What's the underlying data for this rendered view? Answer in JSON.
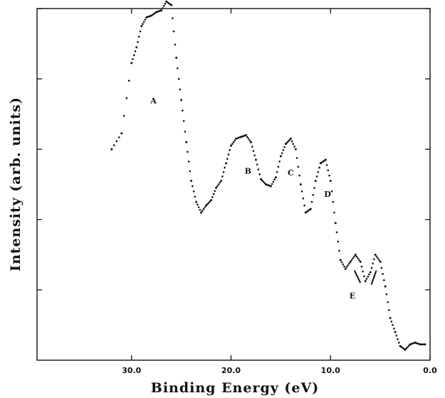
{
  "chart_data": {
    "type": "scatter",
    "title": "",
    "xlabel": "Binding Energy (eV)",
    "ylabel": "Intensity (arb. units)",
    "xlim": [
      39.5,
      0.0
    ],
    "ylim": [
      0,
      100
    ],
    "x_reversed": true,
    "x_ticks": [
      30.0,
      20.0,
      10.0,
      0.0
    ],
    "x_tick_labels": [
      "30.0",
      "20.0",
      "10.0",
      "0.0"
    ],
    "y_ticks": [
      20,
      40,
      60,
      80,
      100
    ],
    "y_tick_labels_shown": false,
    "grid": false,
    "legend": "none",
    "series": [
      {
        "values_x": [
          32.0,
          31.0,
          30.0,
          29.5,
          29.0,
          28.5,
          28.0,
          27.5,
          27.0,
          26.5,
          26.0,
          25.5,
          25.0,
          24.5,
          24.0,
          23.5,
          23.0,
          22.5,
          22.0,
          21.5,
          21.0,
          20.5,
          20.0,
          19.5,
          19.0,
          18.5,
          18.0,
          17.5,
          17.0,
          16.5,
          16.0,
          15.5,
          15.0,
          14.5,
          14.0,
          13.5,
          13.0,
          12.5,
          12.0,
          11.5,
          11.0,
          10.5,
          10.0,
          9.5,
          9.0,
          8.5,
          8.0,
          7.5,
          7.0,
          6.5,
          6.0,
          5.5,
          5.0,
          4.5,
          4.0,
          3.5,
          3.0,
          2.5,
          2.0,
          1.5,
          1.0,
          0.5
        ],
        "values_y": [
          60.0,
          64.5,
          84.5,
          89.0,
          95.0,
          97.5,
          98.0,
          99.0,
          99.5,
          102.0,
          101.0,
          86.0,
          74.0,
          62.0,
          51.0,
          45.0,
          42.0,
          44.0,
          45.5,
          49.0,
          51.0,
          56.0,
          61.0,
          63.0,
          63.5,
          64.0,
          62.0,
          57.0,
          51.5,
          50.0,
          49.5,
          52.0,
          58.0,
          61.5,
          63.0,
          60.0,
          50.0,
          42.0,
          43.0,
          51.0,
          56.0,
          57.0,
          51.0,
          39.0,
          28.5,
          26.0,
          28.0,
          30.0,
          28.0,
          22.5,
          25.0,
          30.0,
          28.0,
          21.0,
          12.0,
          8.0,
          4.0,
          3.0,
          4.5,
          5.0,
          4.5,
          4.5
        ]
      }
    ],
    "annotations": [
      {
        "text": "A",
        "x": 27.8,
        "y": 73.0
      },
      {
        "text": "B",
        "x": 18.3,
        "y": 53.0
      },
      {
        "text": "C",
        "x": 14.0,
        "y": 52.5
      },
      {
        "text": "D",
        "x": 10.3,
        "y": 46.5
      },
      {
        "text": "E",
        "x": 7.8,
        "y": 17.5
      }
    ],
    "e_markers": [
      {
        "x1": 7.0,
        "y1": 22.0,
        "x2": 7.6,
        "y2": 25.5
      },
      {
        "x1": 5.9,
        "y1": 21.5,
        "x2": 5.4,
        "y2": 25.5
      }
    ]
  }
}
